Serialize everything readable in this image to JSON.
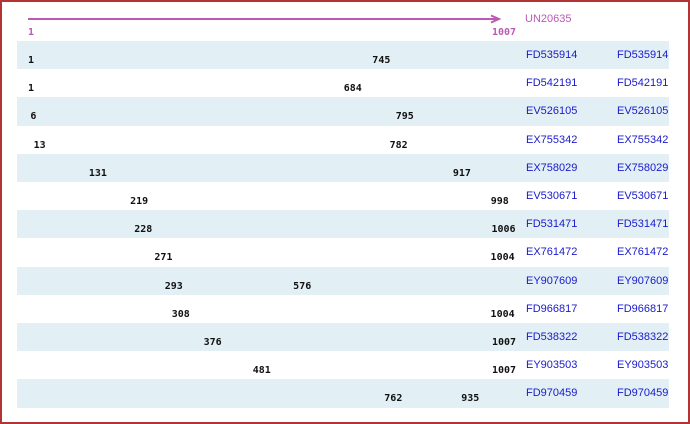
{
  "figure": {
    "title": "UN20635",
    "colors": {
      "border": "#B23434",
      "band": "#E2EFF5",
      "contig": "#B95AB4",
      "read_arrow": "#000000",
      "accession_text": "#1A1ACC",
      "coordinate_text": "#111111",
      "background": "#FFFFFF"
    },
    "chart_data": {
      "type": "table",
      "title": "UN20635",
      "axis_range": [
        1,
        1007
      ],
      "contig": {
        "label": "UN20635",
        "start": 1,
        "end": 1007,
        "direction": "forward"
      },
      "reads": [
        {
          "label": "FD535914",
          "start": 1,
          "end": 745,
          "direction": "forward",
          "shaded": true
        },
        {
          "label": "FD542191",
          "start": 1,
          "end": 684,
          "direction": "forward",
          "shaded": false
        },
        {
          "label": "EV526105",
          "start": 6,
          "end": 795,
          "direction": "forward",
          "shaded": true
        },
        {
          "label": "EX755342",
          "start": 13,
          "end": 782,
          "direction": "forward",
          "shaded": false
        },
        {
          "label": "EX758029",
          "start": 131,
          "end": 917,
          "direction": "forward",
          "shaded": true
        },
        {
          "label": "EV530671",
          "start": 219,
          "end": 998,
          "direction": "reverse",
          "shaded": false
        },
        {
          "label": "FD531471",
          "start": 228,
          "end": 1006,
          "direction": "reverse",
          "shaded": true
        },
        {
          "label": "EX761472",
          "start": 271,
          "end": 1004,
          "direction": "reverse",
          "shaded": false
        },
        {
          "label": "EY907609",
          "start": 293,
          "end": 576,
          "direction": "forward",
          "shaded": true
        },
        {
          "label": "FD966817",
          "start": 308,
          "end": 1004,
          "direction": "reverse",
          "shaded": false
        },
        {
          "label": "FD538322",
          "start": 376,
          "end": 1007,
          "direction": "reverse",
          "shaded": true
        },
        {
          "label": "EY903503",
          "start": 481,
          "end": 1007,
          "direction": "reverse",
          "shaded": false
        },
        {
          "label": "FD970459",
          "start": 762,
          "end": 935,
          "direction": "forward",
          "shaded": true
        }
      ]
    }
  }
}
